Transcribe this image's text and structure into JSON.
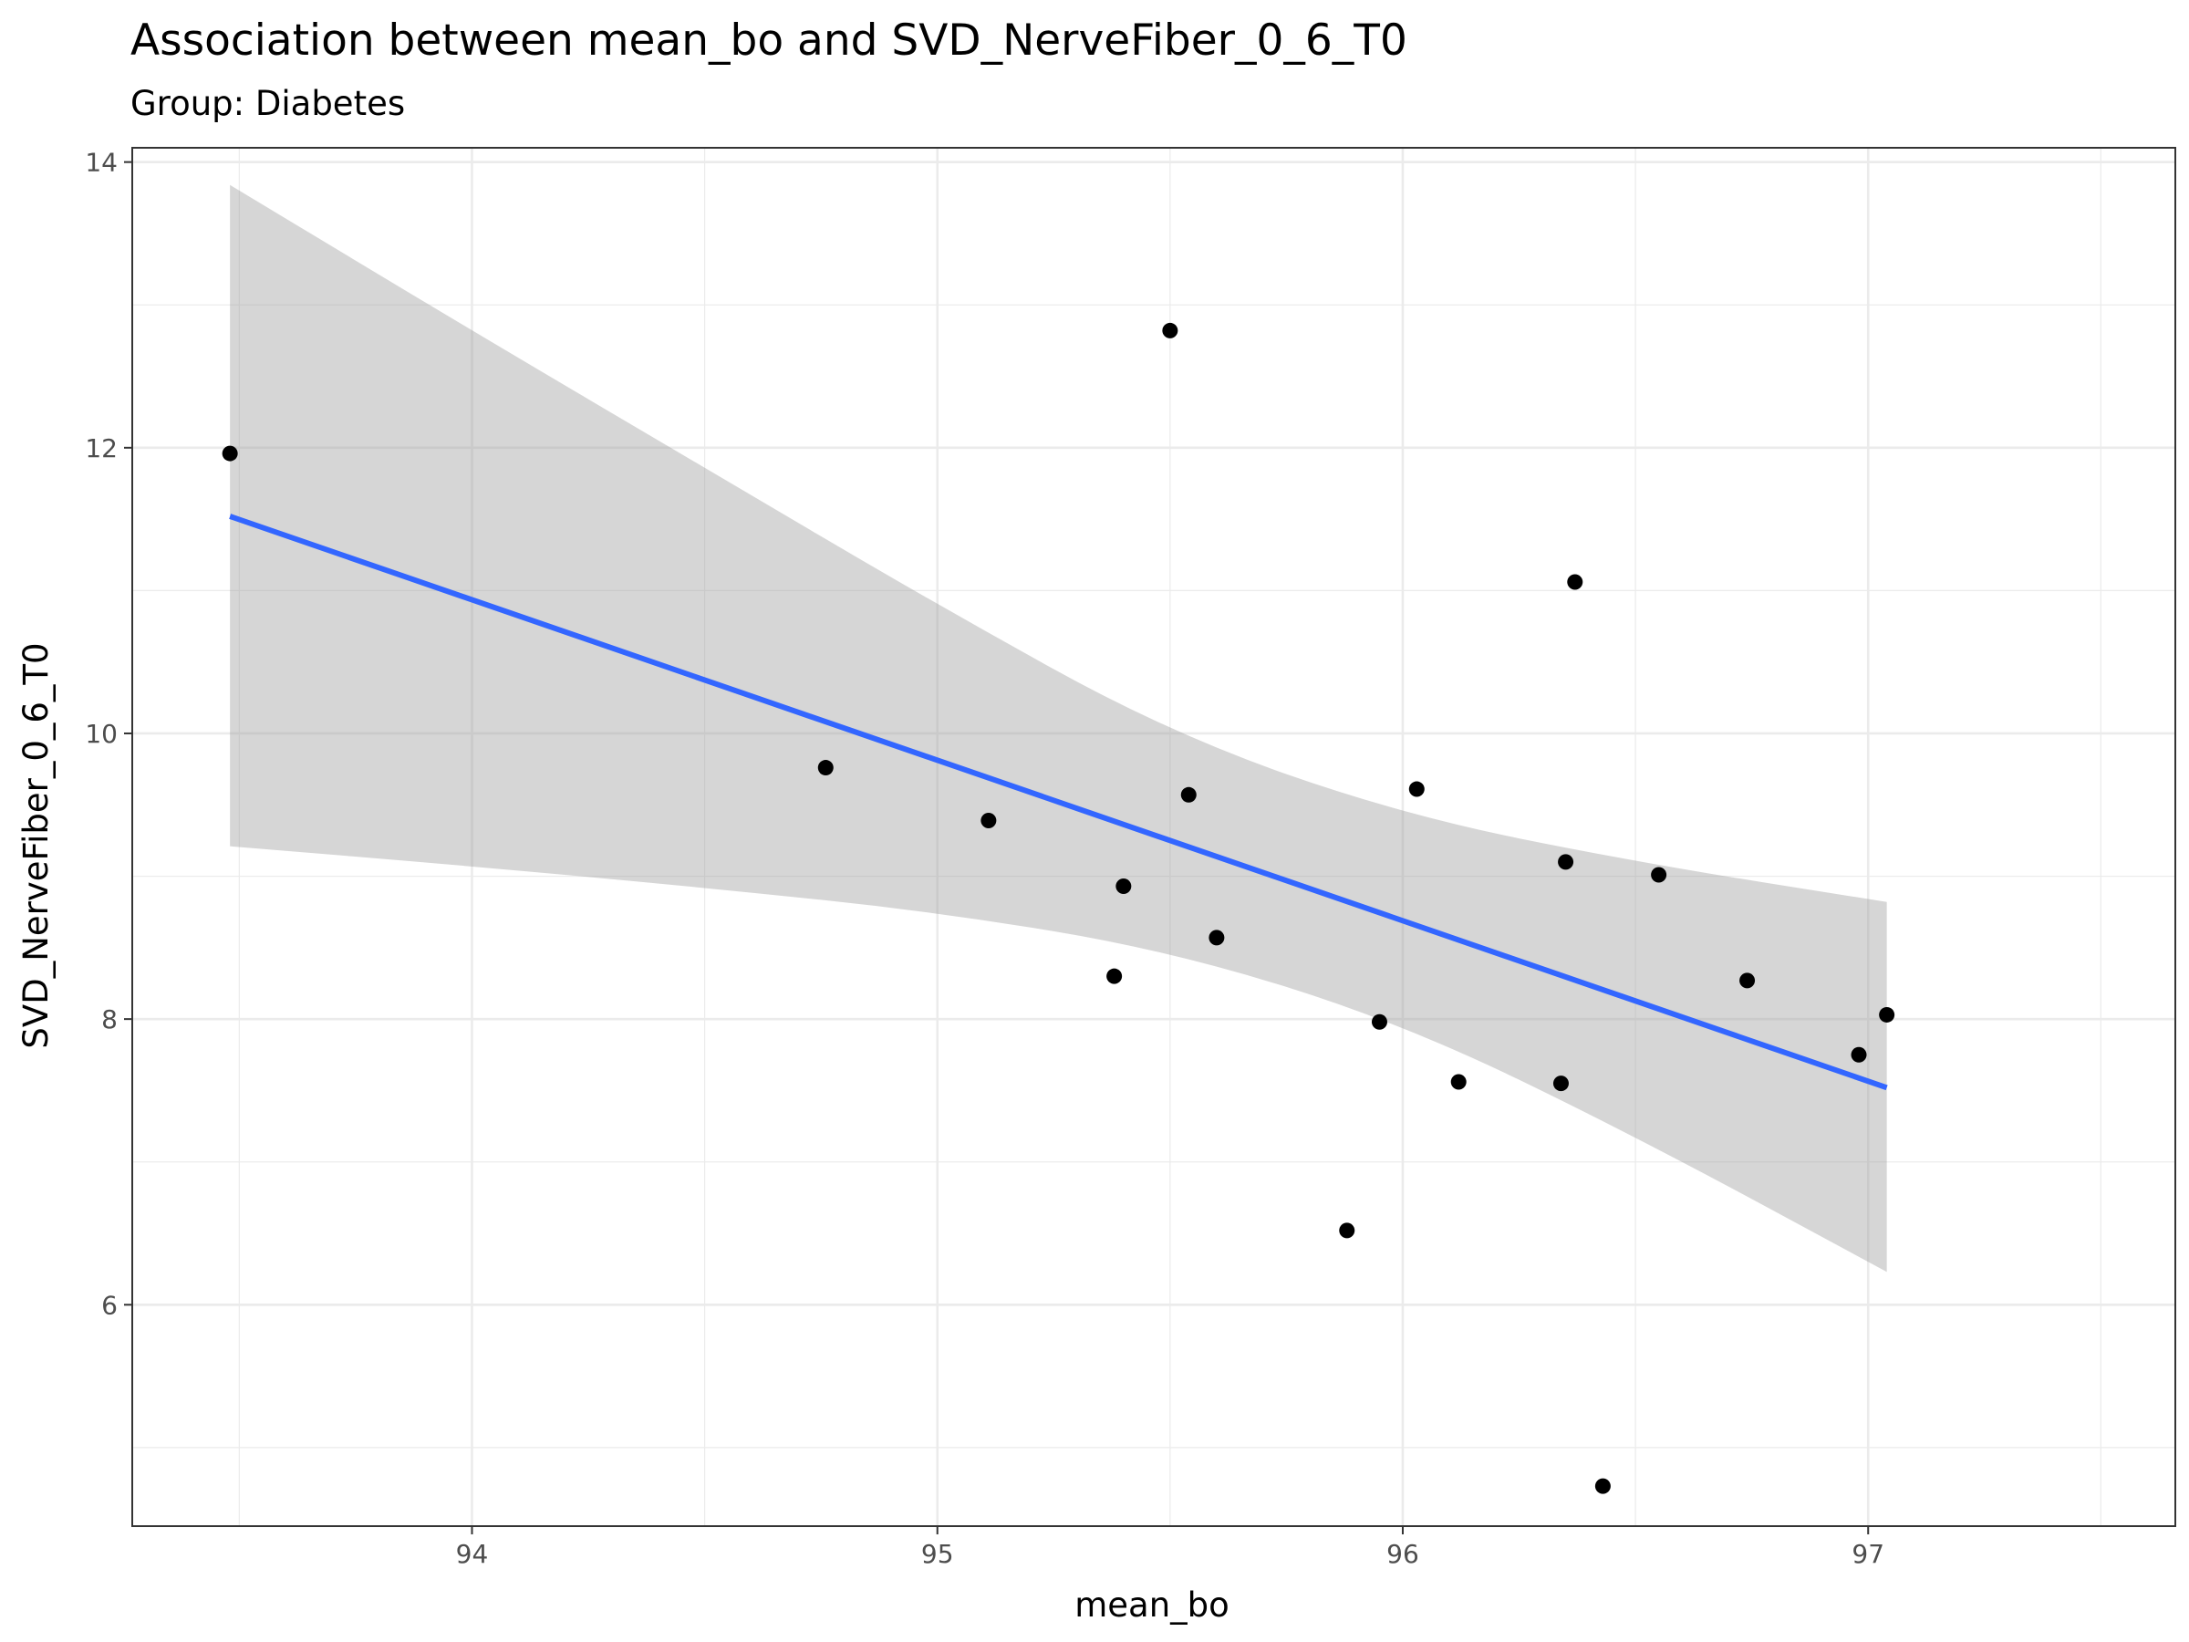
{
  "chart_data": {
    "type": "scatter",
    "title": "Association between mean_bo and SVD_NerveFiber_0_6_T0",
    "subtitle": "Group: Diabetes",
    "xlabel": "mean_bo",
    "ylabel": "SVD_NerveFiber_0_6_T0",
    "xlim": [
      93.27,
      97.66
    ],
    "ylim": [
      4.45,
      14.1
    ],
    "x_ticks": [
      94,
      95,
      96,
      97
    ],
    "y_ticks": [
      6,
      8,
      10,
      12,
      14
    ],
    "x_tick_labels": [
      "94",
      "95",
      "96",
      "97"
    ],
    "y_tick_labels": [
      "6",
      "8",
      "10",
      "12",
      "14"
    ],
    "grid": true,
    "colors": {
      "points": "#000000",
      "fit_line": "#3366ff",
      "confidence_band": "#999999",
      "grid": "#ebebeb",
      "panel_border": "#333333"
    },
    "points": [
      {
        "x": 93.48,
        "y": 11.96
      },
      {
        "x": 94.76,
        "y": 9.76
      },
      {
        "x": 95.11,
        "y": 9.39
      },
      {
        "x": 95.38,
        "y": 8.3
      },
      {
        "x": 95.4,
        "y": 8.93
      },
      {
        "x": 95.5,
        "y": 12.82
      },
      {
        "x": 95.54,
        "y": 9.57
      },
      {
        "x": 95.6,
        "y": 8.57
      },
      {
        "x": 95.88,
        "y": 6.52
      },
      {
        "x": 95.95,
        "y": 7.98
      },
      {
        "x": 96.03,
        "y": 9.61
      },
      {
        "x": 96.12,
        "y": 7.56
      },
      {
        "x": 96.34,
        "y": 7.55
      },
      {
        "x": 96.35,
        "y": 9.1
      },
      {
        "x": 96.37,
        "y": 11.06
      },
      {
        "x": 96.43,
        "y": 4.73
      },
      {
        "x": 96.55,
        "y": 9.01
      },
      {
        "x": 96.74,
        "y": 8.27
      },
      {
        "x": 96.98,
        "y": 7.75
      },
      {
        "x": 97.04,
        "y": 8.03
      }
    ],
    "fit_line": [
      {
        "x": 93.48,
        "y": 11.52
      },
      {
        "x": 97.04,
        "y": 7.52
      }
    ],
    "confidence_band": [
      {
        "x": 93.48,
        "lower": 9.21,
        "upper": 13.84
      },
      {
        "x": 94.0,
        "lower": 9.07,
        "upper": 12.82
      },
      {
        "x": 94.5,
        "lower": 8.92,
        "upper": 11.86
      },
      {
        "x": 95.0,
        "lower": 8.75,
        "upper": 10.9
      },
      {
        "x": 95.5,
        "lower": 8.48,
        "upper": 10.0
      },
      {
        "x": 96.0,
        "lower": 7.97,
        "upper": 9.43
      },
      {
        "x": 96.5,
        "lower": 7.18,
        "upper": 9.1
      },
      {
        "x": 97.04,
        "lower": 6.23,
        "upper": 8.82
      }
    ]
  }
}
